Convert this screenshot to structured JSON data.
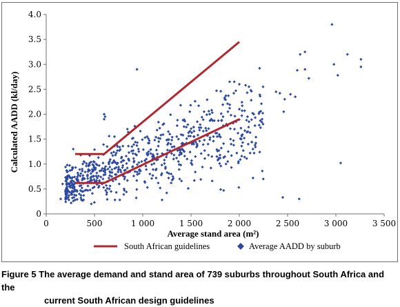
{
  "chart_data": {
    "type": "scatter",
    "xlabel": "Average stand area (m²)",
    "ylabel": "Calculated AADD (kl/day)",
    "xlim": [
      0,
      3500
    ],
    "ylim": [
      0,
      4.0
    ],
    "x_ticks": [
      0,
      500,
      1000,
      1500,
      2000,
      2500,
      3000,
      3500
    ],
    "x_tick_labels": [
      "0",
      "500",
      "1 000",
      "1 500",
      "2 000",
      "2 500",
      "3 000",
      "3 500"
    ],
    "y_ticks": [
      0,
      0.5,
      1.0,
      1.5,
      2.0,
      2.5,
      3.0,
      3.5,
      4.0
    ],
    "y_tick_labels": [
      "0",
      "0.5",
      "1.0",
      "1.5",
      "2.0",
      "2.5",
      "3.0",
      "3.5",
      "4.0"
    ],
    "grid": false,
    "legend_position": "bottom",
    "series": [
      {
        "name": "South African guidelines",
        "kind": "line",
        "color": "#b2272d",
        "segments": [
          [
            [
              300,
              1.2
            ],
            [
              600,
              1.2
            ],
            [
              2000,
              3.45
            ]
          ],
          [
            [
              300,
              0.62
            ],
            [
              600,
              0.62
            ],
            [
              2000,
              1.9
            ]
          ]
        ]
      },
      {
        "name": "Average AADD by suburb",
        "kind": "scatter",
        "color": "#2e4a9e",
        "marker": "diamond",
        "count": 739,
        "points": [
          [
            2960,
            3.8
          ],
          [
            3120,
            3.2
          ],
          [
            2680,
            3.25
          ],
          [
            2630,
            3.2
          ],
          [
            3260,
            3.1
          ],
          [
            2980,
            3.0
          ],
          [
            3260,
            2.95
          ],
          [
            2600,
            2.88
          ],
          [
            2680,
            2.9
          ],
          [
            3020,
            2.78
          ],
          [
            2720,
            2.72
          ],
          [
            3050,
            1.02
          ],
          [
            2450,
            0.33
          ],
          [
            2620,
            0.3
          ],
          [
            2460,
            2.05
          ],
          [
            2470,
            2.3
          ],
          [
            2380,
            2.45
          ],
          [
            2420,
            2.42
          ],
          [
            2530,
            2.4
          ],
          [
            2580,
            2.35
          ],
          [
            2210,
            2.92
          ],
          [
            2000,
            2.6
          ],
          [
            2100,
            2.55
          ],
          [
            1900,
            2.65
          ],
          [
            1850,
            2.3
          ],
          [
            2000,
            2.1
          ],
          [
            1950,
            1.7
          ],
          [
            2100,
            1.85
          ],
          [
            2150,
            2.0
          ],
          [
            1880,
            1.05
          ],
          [
            1850,
            1.15
          ],
          [
            940,
            2.9
          ],
          [
            600,
            2.0
          ],
          [
            610,
            1.95
          ],
          [
            600,
            1.9
          ],
          [
            1200,
            0.28
          ],
          [
            150,
            0.3
          ],
          [
            200,
            0.45
          ],
          [
            170,
            0.6
          ],
          [
            220,
            0.7
          ],
          [
            280,
            1.3
          ]
        ]
      }
    ]
  },
  "caption": {
    "label": "Figure 5",
    "line1": " The average demand and stand area of 739 suburbs throughout South Africa and the",
    "line2": "current South African design guidelines"
  }
}
